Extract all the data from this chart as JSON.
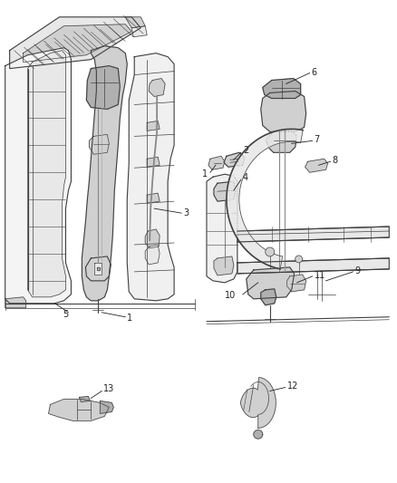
{
  "bg_color": "#ffffff",
  "line_color": "#404040",
  "label_color": "#222222",
  "figsize": [
    4.38,
    5.33
  ],
  "dpi": 100,
  "lw_thin": 0.5,
  "lw_med": 0.8,
  "lw_thick": 1.2,
  "gray_light": "#e8e8e8",
  "gray_med": "#d0d0d0",
  "gray_dark": "#b0b0b0",
  "label_fontsize": 7.0
}
